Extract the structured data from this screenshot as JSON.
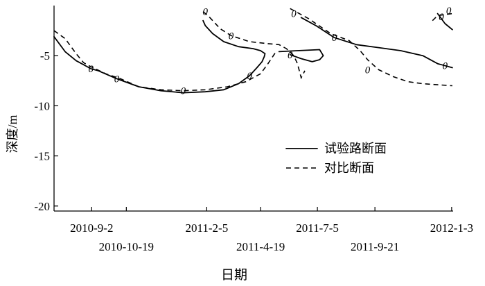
{
  "chart_data": {
    "type": "line",
    "ylabel": "深度/m",
    "xlabel": "日期",
    "ylim": [
      -20.5,
      0
    ],
    "yticks": [
      -5,
      -10,
      -15,
      -20
    ],
    "xrange": [
      "2010-7-13",
      "2012-1-5"
    ],
    "x_tick_rows": [
      [
        "2010-9-2",
        "2011-2-5",
        "2011-7-5",
        "2012-1-3"
      ],
      [
        "2010-10-19",
        "2011-4-19",
        "2011-9-21"
      ]
    ],
    "legend_position": "center-right",
    "grid": false,
    "series": [
      {
        "name": "试验路断面",
        "style": "solid",
        "x": [
          "2010-7-13",
          "2010-7-28",
          "2010-8-12",
          "2010-8-22",
          "2010-9-1",
          "2010-9-11",
          "2010-10-6",
          "2010-11-5",
          "2010-12-5",
          "2011-1-4",
          "2011-2-3",
          "2011-2-28",
          "2011-3-20",
          "2011-4-4",
          "2011-4-14",
          "2011-4-21",
          "2011-4-24",
          "2011-4-25",
          "2011-4-19",
          "2011-4-9",
          "2011-3-20",
          "2011-2-28",
          "2011-2-13",
          "2011-2-3",
          "2011-1-31"
        ],
        "y": [
          -3.1,
          -4.6,
          -5.5,
          -5.9,
          -6.3,
          -6.5,
          -7.3,
          -8.1,
          -8.5,
          -8.7,
          -8.6,
          -8.4,
          -7.8,
          -7.0,
          -6.2,
          -5.6,
          -5.1,
          -4.8,
          -4.5,
          -4.3,
          -4.1,
          -3.6,
          -2.8,
          -2.0,
          -1.5
        ],
        "x2": [
          "2011-5-14",
          "2011-6-8",
          "2011-7-8",
          "2011-7-13",
          "2011-7-8",
          "2011-6-28",
          "2011-6-13",
          "2011-5-29"
        ],
        "y2": [
          -4.6,
          -4.5,
          -4.4,
          -5.0,
          -5.4,
          -5.6,
          -5.3,
          -4.9
        ],
        "x3": [
          "2011-6-13",
          "2011-7-3",
          "2011-7-28",
          "2011-8-27",
          "2011-9-26",
          "2011-10-26",
          "2011-11-25",
          "2011-12-15",
          "2012-1-4"
        ],
        "y3": [
          -1.2,
          -2.0,
          -3.2,
          -3.9,
          -4.2,
          -4.5,
          -5.0,
          -5.8,
          -6.2
        ],
        "x4": [
          "2011-12-15",
          "2011-12-25",
          "2012-1-4"
        ],
        "y4": [
          -0.8,
          -1.8,
          -2.4
        ]
      },
      {
        "name": "对比断面",
        "style": "dashed",
        "x": [
          "2010-7-13",
          "2010-7-28",
          "2010-8-12",
          "2010-8-22",
          "2010-9-1",
          "2010-9-21",
          "2010-10-11",
          "2010-11-5",
          "2010-12-5",
          "2011-1-4",
          "2011-2-3",
          "2011-3-5",
          "2011-3-30",
          "2011-4-19",
          "2011-4-29",
          "2011-5-9"
        ],
        "y": [
          -2.5,
          -3.3,
          -4.8,
          -5.7,
          -6.1,
          -6.8,
          -7.3,
          -8.1,
          -8.4,
          -8.5,
          -8.4,
          -8.1,
          -7.6,
          -6.8,
          -5.8,
          -4.7
        ],
        "x2": [
          "2011-1-31",
          "2011-2-8",
          "2011-2-23",
          "2011-3-10",
          "2011-4-4",
          "2011-4-29",
          "2011-5-14",
          "2011-5-24",
          "2011-6-3",
          "2011-6-8",
          "2011-6-13",
          "2011-6-18"
        ],
        "y2": [
          -0.6,
          -1.1,
          -2.3,
          -3.0,
          -3.6,
          -3.8,
          -3.9,
          -4.3,
          -5.0,
          -5.8,
          -7.2,
          -6.5
        ],
        "x3": [
          "2011-5-29",
          "2011-6-23",
          "2011-7-23",
          "2011-8-17",
          "2011-9-1",
          "2011-9-11",
          "2011-9-26",
          "2011-10-16",
          "2011-11-5",
          "2011-11-25",
          "2011-12-15",
          "2012-1-4"
        ],
        "y3": [
          -0.3,
          -1.3,
          -2.8,
          -3.5,
          -4.5,
          -5.4,
          -6.4,
          -7.1,
          -7.6,
          -7.8,
          -7.9,
          -8.0
        ],
        "x4": [
          "2011-12-8",
          "2011-12-15",
          "2012-1-4"
        ],
        "y4": [
          -1.5,
          -1.0,
          -0.8
        ]
      }
    ],
    "annotations": [
      {
        "text": "0",
        "series": "试验路断面",
        "x": "2010-9-1",
        "y": -6.3
      },
      {
        "text": "0",
        "series": "试验路断面",
        "x": "2010-10-6",
        "y": -7.3
      },
      {
        "text": "0",
        "series": "试验路断面",
        "x": "2011-1-4",
        "y": -8.5
      },
      {
        "text": "0",
        "series": "试验路断面",
        "x": "2011-4-4",
        "y": -7.0
      },
      {
        "text": "0",
        "series": "试验路断面",
        "x": "2011-5-29",
        "y": -4.9
      },
      {
        "text": "0",
        "series": "试验路断面",
        "x": "2011-7-28",
        "y": -3.2
      },
      {
        "text": "0",
        "series": "试验路断面",
        "x": "2011-12-25",
        "y": -6.0
      },
      {
        "text": "0",
        "series": "试验路断面",
        "x": "2011-12-20",
        "y": -1.1
      },
      {
        "text": "0",
        "series": "对比断面",
        "x": "2011-2-3",
        "y": -0.6
      },
      {
        "text": "0",
        "series": "对比断面",
        "x": "2011-3-10",
        "y": -3.0
      },
      {
        "text": "0",
        "series": "对比断面",
        "x": "2011-6-3",
        "y": -0.8
      },
      {
        "text": "0",
        "series": "对比断面",
        "x": "2011-9-11",
        "y": -6.4
      },
      {
        "text": "0",
        "series": "对比断面",
        "x": "2011-12-30",
        "y": -0.5
      }
    ]
  }
}
